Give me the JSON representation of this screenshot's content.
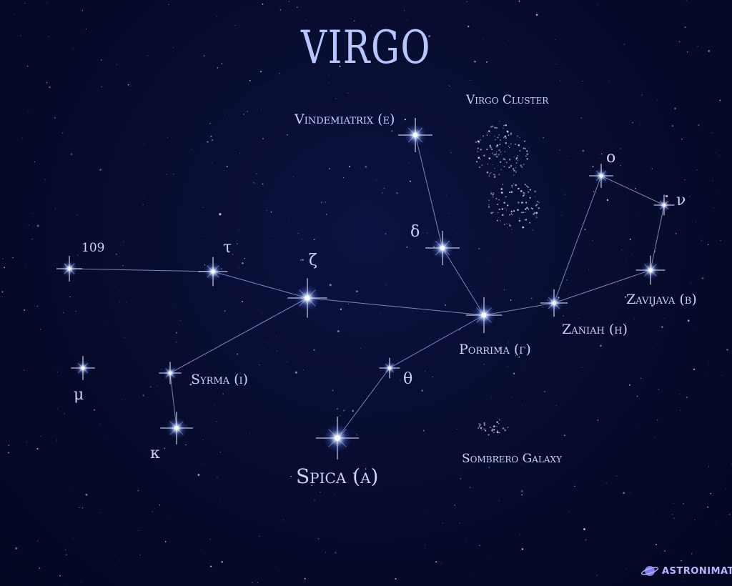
{
  "title": "VIRGO",
  "stars": {
    "vindemiatrix": "Vindemiatrix (ε)",
    "delta": "δ",
    "porrima": "Porrima (γ)",
    "zaniah": "Zaniah (η)",
    "zavijava": "Zavijava (β)",
    "omicron": "ο",
    "nu": "ν",
    "zeta": "ζ",
    "tau": "τ",
    "s109": "109",
    "syrma": "Syrma (ι)",
    "kappa": "κ",
    "mu": "μ",
    "theta": "θ",
    "spica": "Spica (α)"
  },
  "deep_sky": {
    "virgo_cluster": "Virgo Cluster",
    "sombrero": "Sombrero Galaxy"
  },
  "brand": "ASTRONIMATE",
  "colors": {
    "background": "#070b2c",
    "label": "#c7d2ff",
    "line": "#9fb0e8",
    "brand_planet": "#7d7cf0"
  }
}
